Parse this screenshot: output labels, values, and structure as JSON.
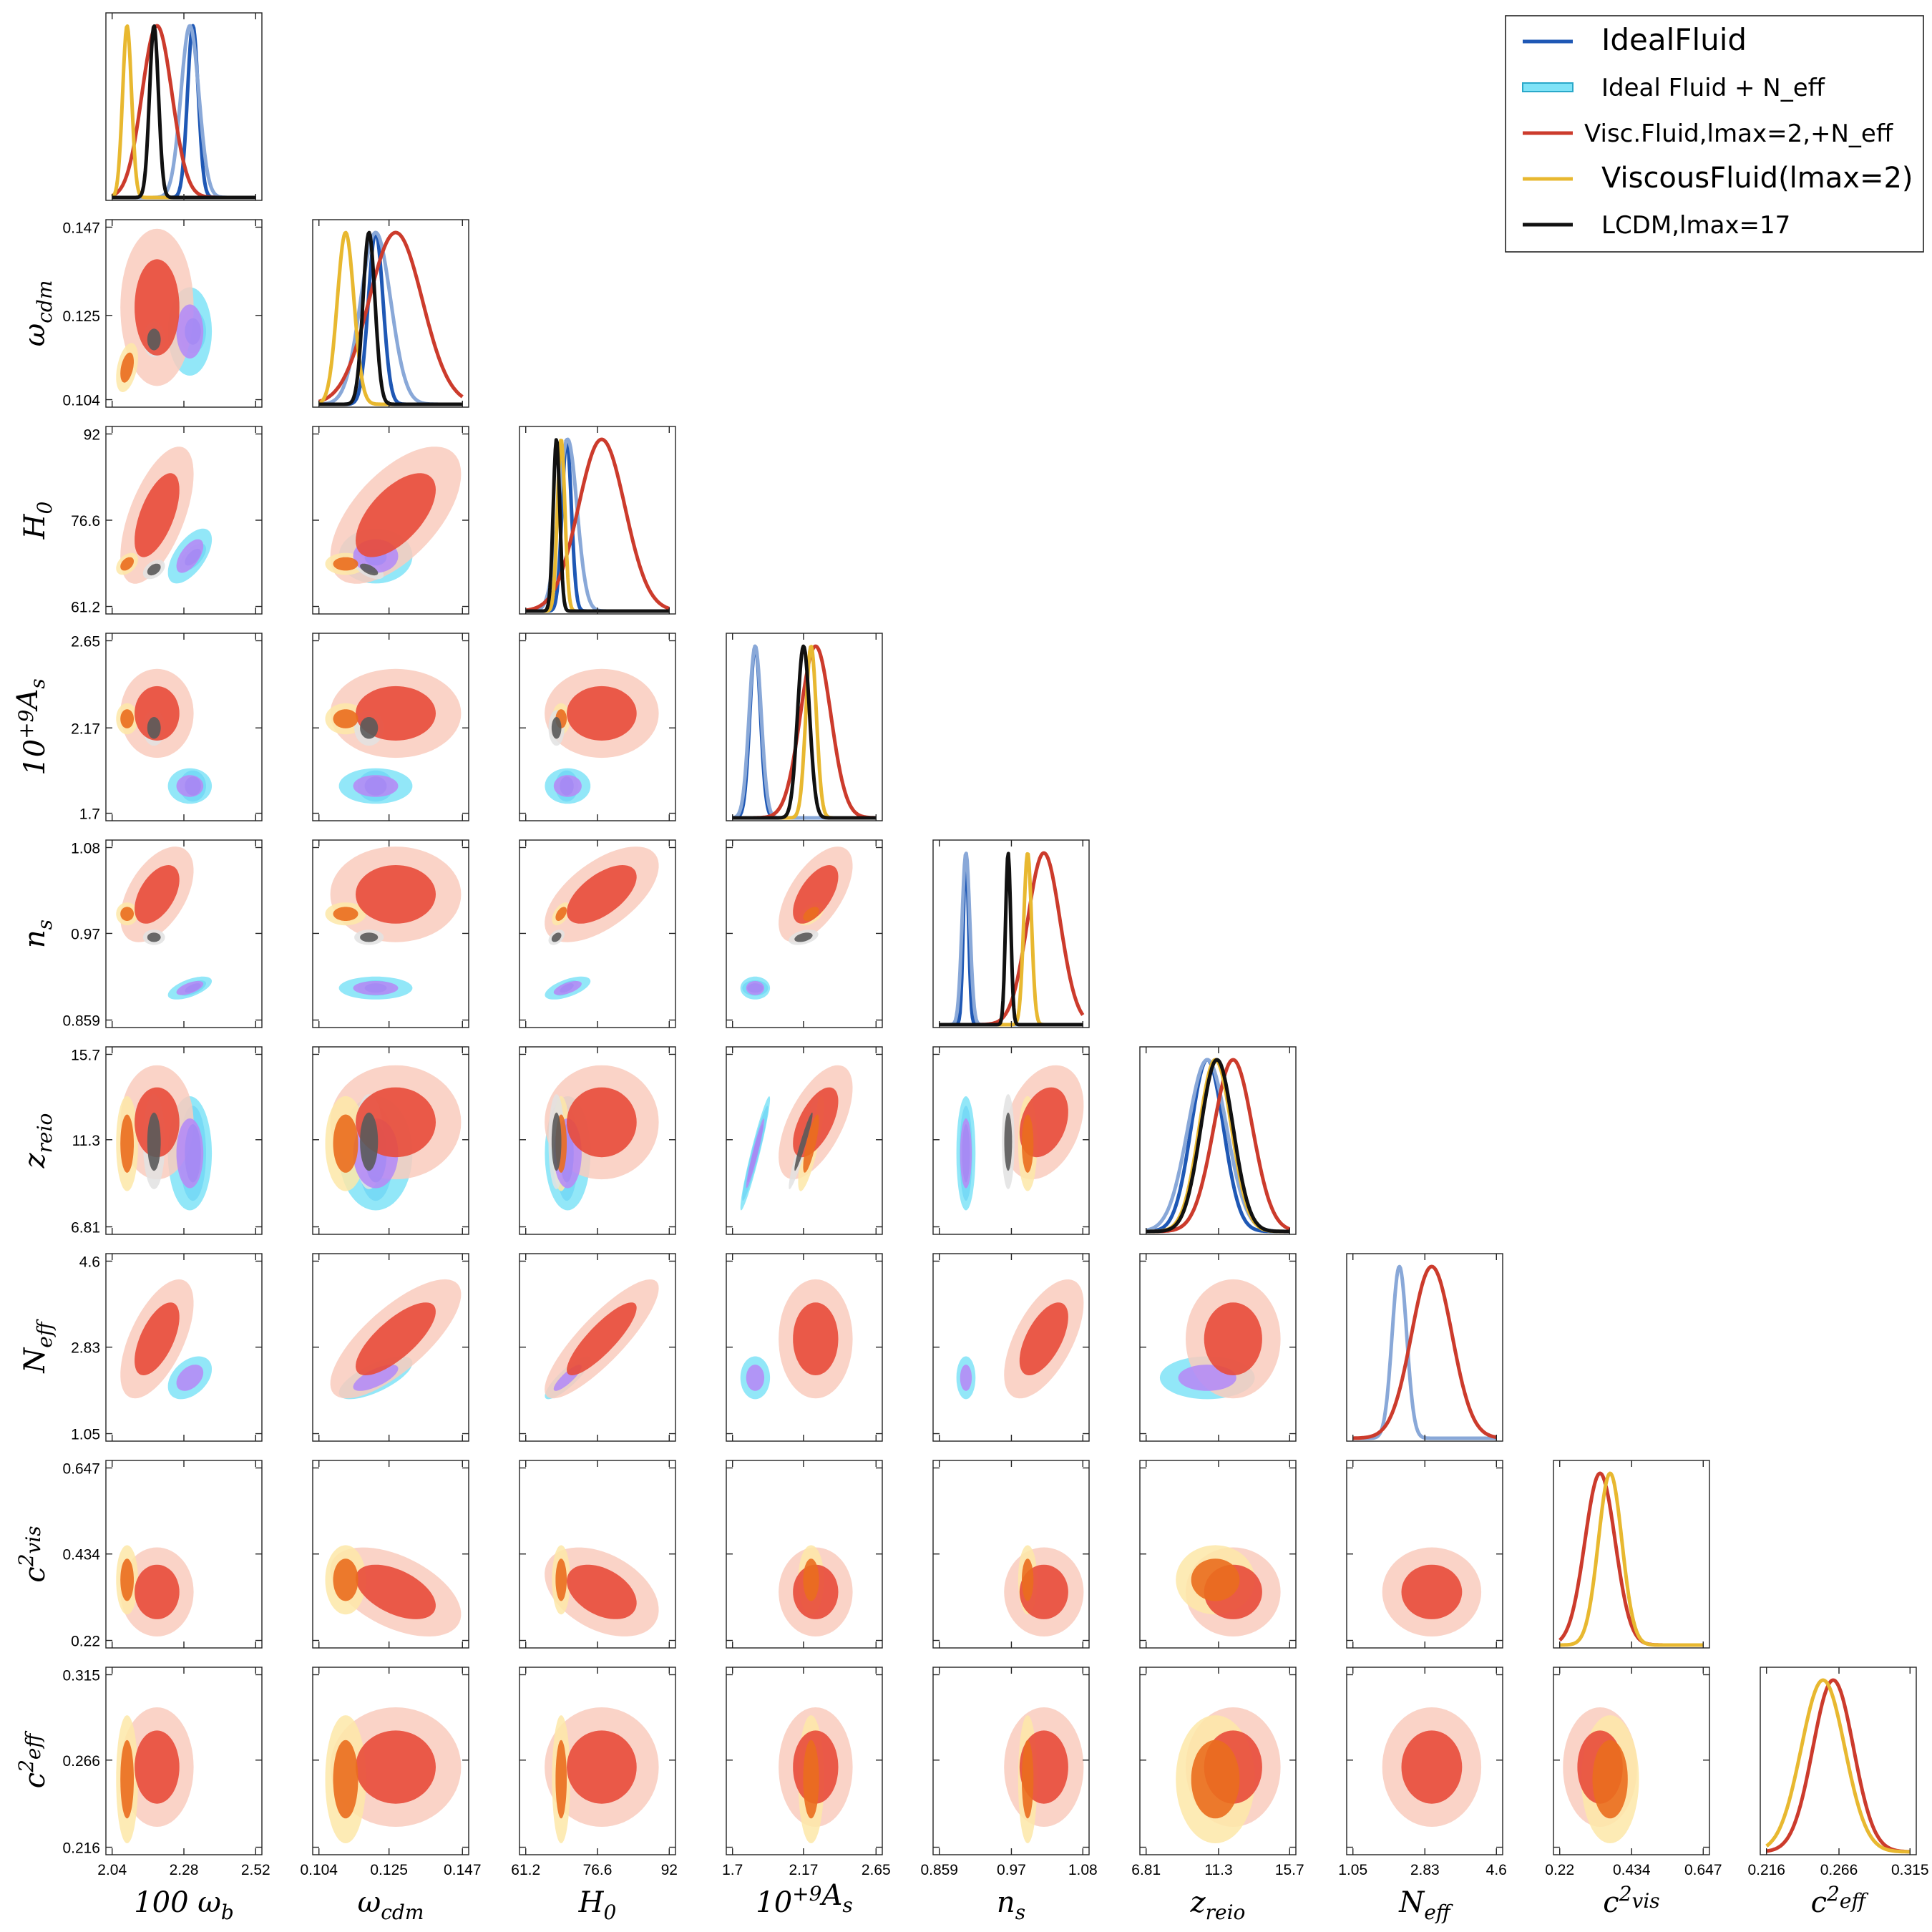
{
  "chart_data": {
    "type": "triangle-plot",
    "description_free": true,
    "parameters": [
      {
        "key": "omega_b",
        "label_pre": "100 ω",
        "label_sub": "b",
        "ticks": [
          "2.04",
          "2.28",
          "2.52"
        ],
        "range": [
          2.04,
          2.52
        ]
      },
      {
        "key": "omega_cdm",
        "label_pre": "ω",
        "label_sub": "cdm",
        "ticks": [
          "0.104",
          "0.125",
          "0.147"
        ],
        "range": [
          0.104,
          0.147
        ]
      },
      {
        "key": "H0",
        "label_pre": "H",
        "label_sub": "0",
        "ticks": [
          "61.2",
          "76.6",
          "92"
        ],
        "range": [
          61.2,
          92
        ]
      },
      {
        "key": "As",
        "label_pre": "10",
        "label_sup": "+9",
        "label_post": "A",
        "label_sub": "s",
        "ticks": [
          "1.7",
          "2.17",
          "2.65"
        ],
        "range": [
          1.7,
          2.65
        ]
      },
      {
        "key": "ns",
        "label_pre": "n",
        "label_sub": "s",
        "ticks": [
          "0.859",
          "0.97",
          "1.08"
        ],
        "range": [
          0.859,
          1.08
        ]
      },
      {
        "key": "z_reio",
        "label_pre": "z",
        "label_sub": "reio",
        "ticks": [
          "6.81",
          "11.3",
          "15.7"
        ],
        "range": [
          6.81,
          15.7
        ]
      },
      {
        "key": "N_eff",
        "label_pre": "N",
        "label_sub": "eff",
        "ticks": [
          "1.05",
          "2.83",
          "4.6"
        ],
        "range": [
          1.05,
          4.6
        ]
      },
      {
        "key": "c2_vis",
        "label_pre": "c",
        "label_sup": "2",
        "label_sub": "vis",
        "ticks": [
          "0.22",
          "0.434",
          "0.647"
        ],
        "range": [
          0.22,
          0.647
        ]
      },
      {
        "key": "c2_eff",
        "label_pre": "c",
        "label_sup": "2",
        "label_sub": "eff",
        "ticks": [
          "0.216",
          "0.266",
          "0.315"
        ],
        "range": [
          0.216,
          0.315
        ]
      }
    ],
    "series": [
      {
        "name": "IdealFluid",
        "legend": "IdealFluid",
        "color": "#1f58b5",
        "fill_inner": "#1e7ee6",
        "fill_outer": "#2f9af0",
        "params": [
          "omega_b",
          "omega_cdm",
          "H0",
          "As",
          "ns",
          "z_reio"
        ],
        "means": {
          "omega_b": 2.31,
          "omega_cdm": 0.121,
          "H0": 70.0,
          "As": 1.85,
          "ns": 0.9,
          "z_reio": 10.6
        },
        "sigmas": {
          "omega_b": 0.018,
          "omega_cdm": 0.0022,
          "H0": 1.0,
          "As": 0.035,
          "ns": 0.004,
          "z_reio": 1.0
        },
        "corr": {
          "omega_b|H0": 0.6,
          "omega_b|ns": 0.6,
          "H0|ns": 0.6,
          "As|z_reio": 0.95
        }
      },
      {
        "name": "IdealFluid+Neff",
        "legend": "Ideal Fluid + N_eff",
        "color": "#89a8d8",
        "fill_inner": "#b58cf5",
        "fill_outer": "#7fe3f7",
        "params": [
          "omega_b",
          "omega_cdm",
          "H0",
          "As",
          "ns",
          "z_reio",
          "N_eff"
        ],
        "means": {
          "omega_b": 2.3,
          "omega_cdm": 0.121,
          "H0": 70.2,
          "As": 1.85,
          "ns": 0.9,
          "z_reio": 10.6,
          "N_eff": 2.2
        },
        "sigmas": {
          "omega_b": 0.03,
          "omega_cdm": 0.0045,
          "H0": 2.0,
          "As": 0.04,
          "ns": 0.006,
          "z_reio": 1.2,
          "N_eff": 0.18
        },
        "corr": {
          "omega_b|H0": 0.6,
          "omega_b|ns": 0.6,
          "H0|ns": 0.6,
          "As|z_reio": 0.95,
          "H0|N_eff": 0.85,
          "omega_cdm|N_eff": 0.7,
          "omega_b|N_eff": 0.4
        }
      },
      {
        "name": "ViscFluid+Neff",
        "legend": "Visc.Fluid,lmax=2,+N_eff",
        "color": "#cc3b2c",
        "fill_inner": "#e84b3a",
        "fill_outer": "#f9cbbd",
        "params": [
          "omega_b",
          "omega_cdm",
          "H0",
          "As",
          "ns",
          "z_reio",
          "N_eff",
          "c2_vis",
          "c2_eff"
        ],
        "means": {
          "omega_b": 2.19,
          "omega_cdm": 0.127,
          "H0": 77.5,
          "As": 2.25,
          "ns": 1.02,
          "z_reio": 12.2,
          "N_eff": 3.0,
          "c2_vis": 0.34,
          "c2_eff": 0.262
        },
        "sigmas": {
          "omega_b": 0.05,
          "omega_cdm": 0.008,
          "H0": 5.0,
          "As": 0.1,
          "ns": 0.025,
          "z_reio": 1.2,
          "N_eff": 0.5,
          "c2_vis": 0.045,
          "c2_eff": 0.014
        },
        "corr": {
          "omega_b|H0": 0.6,
          "omega_b|ns": 0.5,
          "omega_b|N_eff": 0.6,
          "omega_cdm|H0": 0.6,
          "omega_cdm|N_eff": 0.75,
          "H0|N_eff": 0.85,
          "H0|ns": 0.6,
          "As|ns": 0.6,
          "As|z_reio": 0.6,
          "ns|N_eff": 0.6,
          "omega_cdm|c2_vis": -0.5,
          "H0|c2_vis": -0.4,
          "ns|z_reio": 0.3
        }
      },
      {
        "name": "ViscousFluid",
        "legend": "ViscousFluid(lmax=2)",
        "color": "#e8b830",
        "fill_inner": "#ea6d1e",
        "fill_outer": "#fde7a8",
        "params": [
          "omega_b",
          "omega_cdm",
          "H0",
          "As",
          "ns",
          "z_reio",
          "c2_vis",
          "c2_eff"
        ],
        "means": {
          "omega_b": 2.09,
          "omega_cdm": 0.112,
          "H0": 68.8,
          "As": 2.22,
          "ns": 0.995,
          "z_reio": 11.1,
          "c2_vis": 0.37,
          "c2_eff": 0.255
        },
        "sigmas": {
          "omega_b": 0.015,
          "omega_cdm": 0.0025,
          "H0": 0.8,
          "As": 0.035,
          "ns": 0.006,
          "z_reio": 1.0,
          "c2_vis": 0.035,
          "c2_eff": 0.015
        },
        "corr": {
          "omega_b|omega_cdm": 0.4,
          "omega_b|H0": 0.4,
          "As|z_reio": 0.8,
          "As|ns": 0.5,
          "H0|ns": 0.5
        }
      },
      {
        "name": "LCDM",
        "legend": "LCDM,lmax=17",
        "color": "#111111",
        "fill_inner": "#5a5a5a",
        "fill_outer": "#e2e2e2",
        "params": [
          "omega_b",
          "omega_cdm",
          "H0",
          "As",
          "ns",
          "z_reio"
        ],
        "means": {
          "omega_b": 2.18,
          "omega_cdm": 0.119,
          "H0": 67.8,
          "As": 2.17,
          "ns": 0.965,
          "z_reio": 11.2
        },
        "sigmas": {
          "omega_b": 0.015,
          "omega_cdm": 0.0018,
          "H0": 0.7,
          "As": 0.04,
          "ns": 0.004,
          "z_reio": 1.0
        },
        "corr": {
          "omega_b|H0": 0.4,
          "omega_cdm|H0": -0.6,
          "As|z_reio": 0.95,
          "As|ns": 0.4,
          "H0|ns": 0.4
        }
      }
    ],
    "legend": {
      "placement": "top-right",
      "entries": [
        "IdealFluid",
        "Ideal Fluid + N_eff",
        "Visc.Fluid,lmax=2,+N_eff",
        "ViscousFluid(lmax=2)",
        "LCDM,lmax=17"
      ]
    }
  }
}
